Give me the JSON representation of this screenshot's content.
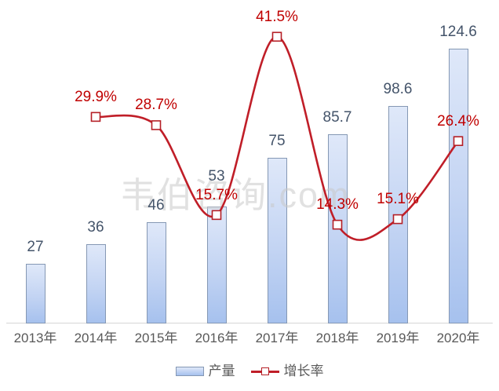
{
  "watermark": "韦伯咨询.com",
  "colors": {
    "bar_fill_top": "#dfe8f9",
    "bar_fill_bottom": "#a6c1ee",
    "bar_border": "#8598b4",
    "bar_value_label": "#44546a",
    "line": "#c01e28",
    "marker_border": "#b51f26",
    "marker_fill": "#ffffff",
    "growth_label": "#c00000",
    "axis_line": "#d6d6d6",
    "tick_label": "#595959",
    "watermark_gray": "#c9c9c9"
  },
  "chart_data": {
    "type": "combo-bar-line",
    "title": "",
    "xlabel": "",
    "ylabel": "",
    "categories": [
      "2013年",
      "2014年",
      "2015年",
      "2016年",
      "2017年",
      "2018年",
      "2019年",
      "2020年"
    ],
    "series": [
      {
        "name": "产量",
        "type": "bar",
        "values": [
          27,
          36,
          46,
          53,
          75,
          85.7,
          98.6,
          124.6
        ],
        "label_suffix": ""
      },
      {
        "name": "增长率",
        "type": "line",
        "values": [
          null,
          29.9,
          28.7,
          15.7,
          41.5,
          14.3,
          15.1,
          26.4
        ],
        "label_suffix": "%"
      }
    ],
    "bar_axis_range": [
      0,
      145
    ],
    "line_axis_range": [
      0,
      46
    ],
    "grid": false,
    "legend_position": "bottom",
    "data_labels": true
  }
}
